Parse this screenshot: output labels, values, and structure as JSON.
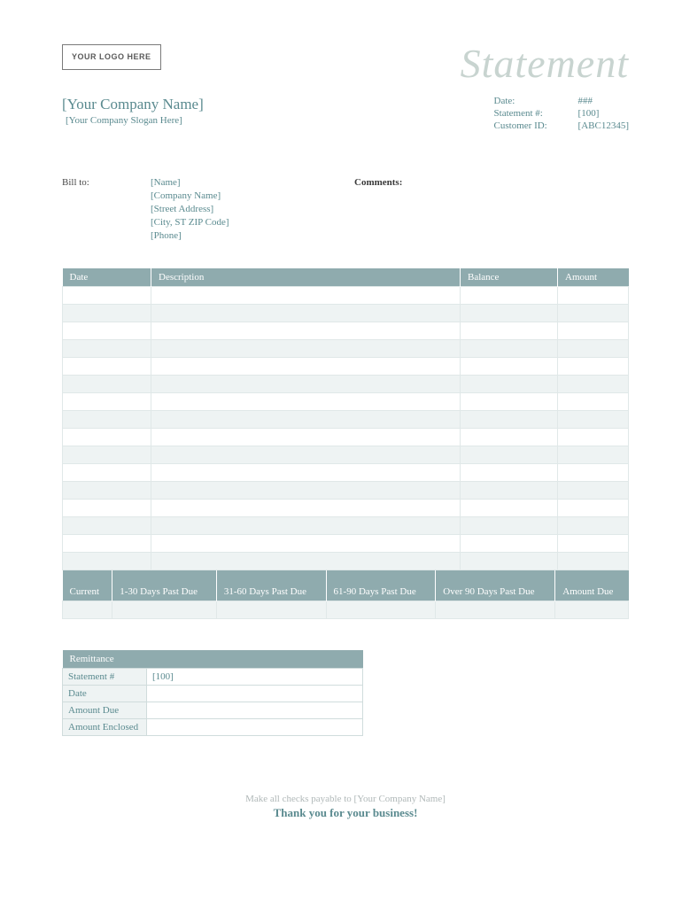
{
  "header": {
    "logo_text": "YOUR LOGO HERE",
    "title": "Statement",
    "company_name": "[Your Company Name]",
    "company_slogan": "[Your Company Slogan Here]"
  },
  "meta": {
    "date_label": "Date:",
    "date_value": "###",
    "statement_label": "Statement #:",
    "statement_value": "[100]",
    "customer_label": "Customer ID:",
    "customer_value": "[ABC12345]"
  },
  "bill": {
    "label": "Bill to:",
    "name": "[Name]",
    "company": "[Company Name]",
    "street": "[Street Address]",
    "city": "[City, ST  ZIP Code]",
    "phone": "[Phone]",
    "comments_label": "Comments:"
  },
  "table": {
    "headers": {
      "date": "Date",
      "desc": "Description",
      "balance": "Balance",
      "amount": "Amount"
    },
    "row_count": 16
  },
  "aging": {
    "headers": {
      "current": "Current",
      "d1": "1-30 Days Past Due",
      "d2": "31-60 Days Past Due",
      "d3": "61-90 Days Past Due",
      "d4": "Over 90 Days Past Due",
      "due": "Amount Due"
    }
  },
  "remit": {
    "title": "Remittance",
    "rows": {
      "statement_label": "Statement #",
      "statement_value": "[100]",
      "date_label": "Date",
      "date_value": "",
      "due_label": "Amount Due",
      "due_value": "",
      "enclosed_label": "Amount Enclosed",
      "enclosed_value": ""
    }
  },
  "footer": {
    "line1": "Make all checks payable to [Your Company Name]",
    "line2": "Thank you for your business!"
  },
  "colors": {
    "header_bg": "#8fabae",
    "alt_row": "#eef3f3",
    "border": "#e0e8e8",
    "text": "#5a8a8f",
    "title": "#c8d4d0"
  }
}
